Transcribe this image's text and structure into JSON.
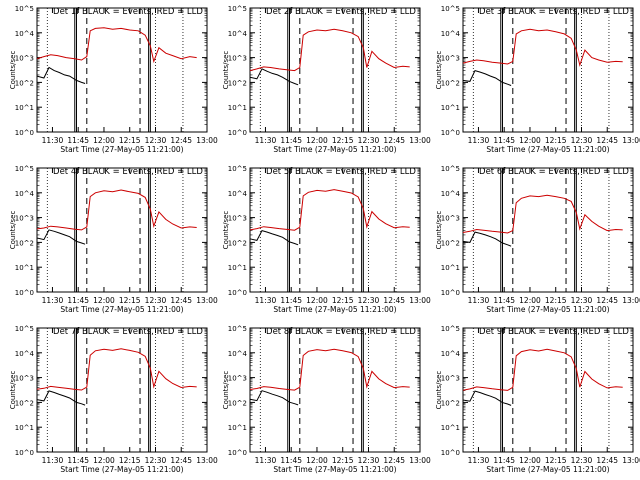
{
  "chart_data": [
    {
      "type": "line",
      "title": "Det 1f BLACK = Events, RED = LLD",
      "xlabel": "Start Time (27-May-05 11:21:00)",
      "ylabel": "Counts/sec",
      "xticks": [
        "11:30",
        "11:45",
        "12:00",
        "12:15",
        "12:30",
        "12:45",
        "13:00"
      ],
      "yticks": [
        "10^0",
        "10^1",
        "10^2",
        "10^3",
        "10^4",
        "10^5"
      ],
      "ylim": [
        1,
        100000
      ],
      "yscale": "log",
      "xlim": [
        "11:21",
        "13:00"
      ],
      "series": [
        {
          "color": "#000000",
          "x": [
            "11:21",
            "11:25",
            "11:28",
            "11:31",
            "11:34",
            "11:37",
            "11:40",
            "11:44",
            "11:47",
            "11:49"
          ],
          "values": [
            180,
            150,
            400,
            300,
            250,
            200,
            180,
            120,
            100,
            90
          ]
        },
        {
          "color": "#cc0000",
          "x": [
            "11:21",
            "11:25",
            "11:29",
            "11:33",
            "11:38",
            "11:43",
            "11:47",
            "11:50",
            "11:52",
            "11:55",
            "12:00",
            "12:05",
            "12:10",
            "12:15",
            "12:20",
            "12:24",
            "12:27",
            "12:29",
            "12:32",
            "12:36",
            "12:40",
            "12:45",
            "12:50",
            "12:54"
          ],
          "values": [
            900,
            1100,
            1300,
            1200,
            1000,
            900,
            800,
            1100,
            12000,
            15000,
            16000,
            14000,
            15000,
            13000,
            12000,
            8000,
            3000,
            700,
            2500,
            1500,
            1200,
            900,
            1100,
            1000
          ]
        }
      ]
    },
    {
      "type": "line",
      "title": "Det 2f BLACK = Events, RED = LLD",
      "xlabel": "Start Time (27-May-05 11:21:00)",
      "ylabel": "Counts/sec",
      "xticks": [
        "11:30",
        "11:45",
        "12:00",
        "12:15",
        "12:30",
        "12:45",
        "13:00"
      ],
      "yticks": [
        "10^0",
        "10^1",
        "10^2",
        "10^3",
        "10^4",
        "10^5"
      ],
      "ylim": [
        1,
        100000
      ],
      "yscale": "log",
      "xlim": [
        "11:21",
        "13:00"
      ],
      "series": [
        {
          "color": "#000000",
          "x": [
            "11:21",
            "11:25",
            "11:28",
            "11:31",
            "11:34",
            "11:37",
            "11:40",
            "11:44",
            "11:47",
            "11:49"
          ],
          "values": [
            160,
            140,
            350,
            280,
            230,
            200,
            160,
            110,
            90,
            80
          ]
        },
        {
          "color": "#cc0000",
          "x": [
            "11:21",
            "11:25",
            "11:29",
            "11:33",
            "11:38",
            "11:43",
            "11:47",
            "11:50",
            "11:52",
            "11:55",
            "12:00",
            "12:05",
            "12:10",
            "12:15",
            "12:20",
            "12:24",
            "12:27",
            "12:29",
            "12:32",
            "12:36",
            "12:40",
            "12:45",
            "12:50",
            "12:54"
          ],
          "values": [
            300,
            350,
            420,
            400,
            350,
            320,
            300,
            400,
            8000,
            11000,
            13000,
            12000,
            14000,
            12000,
            10000,
            7000,
            2500,
            400,
            1800,
            900,
            600,
            400,
            450,
            420
          ]
        }
      ]
    },
    {
      "type": "line",
      "title": "Det 3f BLACK = Events, RED = LLD",
      "xlabel": "Start Time (27-May-05 11:21:00)",
      "ylabel": "Counts/sec",
      "xticks": [
        "11:30",
        "11:45",
        "12:00",
        "12:15",
        "12:30",
        "12:45",
        "13:00"
      ],
      "yticks": [
        "10^0",
        "10^1",
        "10^2",
        "10^3",
        "10^4",
        "10^5"
      ],
      "ylim": [
        1,
        100000
      ],
      "yscale": "log",
      "xlim": [
        "11:21",
        "13:00"
      ],
      "series": [
        {
          "color": "#000000",
          "x": [
            "11:21",
            "11:25",
            "11:28",
            "11:31",
            "11:34",
            "11:37",
            "11:40",
            "11:44",
            "11:47",
            "11:49"
          ],
          "values": [
            120,
            110,
            300,
            260,
            220,
            180,
            150,
            100,
            85,
            75
          ]
        },
        {
          "color": "#cc0000",
          "x": [
            "11:21",
            "11:25",
            "11:29",
            "11:33",
            "11:38",
            "11:43",
            "11:47",
            "11:50",
            "11:52",
            "11:55",
            "12:00",
            "12:05",
            "12:10",
            "12:15",
            "12:20",
            "12:24",
            "12:27",
            "12:29",
            "12:32",
            "12:36",
            "12:40",
            "12:45",
            "12:50",
            "12:54"
          ],
          "values": [
            600,
            700,
            800,
            750,
            650,
            600,
            550,
            700,
            9000,
            12000,
            14000,
            12000,
            13000,
            11000,
            9000,
            6000,
            2000,
            500,
            2000,
            1000,
            800,
            650,
            700,
            680
          ]
        }
      ]
    },
    {
      "type": "line",
      "title": "Det 4f BLACK = Events, RED = LLD",
      "xlabel": "Start Time (27-May-05 11:21:00)",
      "ylabel": "Counts/sec",
      "xticks": [
        "11:30",
        "11:45",
        "12:00",
        "12:15",
        "12:30",
        "12:45",
        "13:00"
      ],
      "yticks": [
        "10^0",
        "10^1",
        "10^2",
        "10^3",
        "10^4",
        "10^5"
      ],
      "ylim": [
        1,
        100000
      ],
      "yscale": "log",
      "xlim": [
        "11:21",
        "13:00"
      ],
      "series": [
        {
          "color": "#000000",
          "x": [
            "11:21",
            "11:25",
            "11:28",
            "11:31",
            "11:34",
            "11:37",
            "11:40",
            "11:44",
            "11:47",
            "11:49"
          ],
          "values": [
            150,
            130,
            320,
            280,
            240,
            200,
            170,
            110,
            95,
            85
          ]
        },
        {
          "color": "#cc0000",
          "x": [
            "11:21",
            "11:25",
            "11:29",
            "11:33",
            "11:38",
            "11:43",
            "11:47",
            "11:50",
            "11:52",
            "11:55",
            "12:00",
            "12:05",
            "12:10",
            "12:15",
            "12:20",
            "12:24",
            "12:27",
            "12:29",
            "12:32",
            "12:36",
            "12:40",
            "12:45",
            "12:50",
            "12:54"
          ],
          "values": [
            350,
            380,
            450,
            420,
            380,
            340,
            320,
            420,
            7000,
            10000,
            12000,
            11000,
            13000,
            11000,
            9500,
            6500,
            2200,
            450,
            1700,
            850,
            550,
            380,
            420,
            400
          ]
        }
      ]
    },
    {
      "type": "line",
      "title": "Det 5f BLACK = Events, RED = LLD",
      "xlabel": "Start Time (27-May-05 11:21:00)",
      "ylabel": "Counts/sec",
      "xticks": [
        "11:30",
        "11:45",
        "12:00",
        "12:15",
        "12:30",
        "12:45",
        "13:00"
      ],
      "yticks": [
        "10^0",
        "10^1",
        "10^2",
        "10^3",
        "10^4",
        "10^5"
      ],
      "ylim": [
        1,
        100000
      ],
      "yscale": "log",
      "xlim": [
        "11:21",
        "13:00"
      ],
      "series": [
        {
          "color": "#000000",
          "x": [
            "11:21",
            "11:25",
            "11:28",
            "11:31",
            "11:34",
            "11:37",
            "11:40",
            "11:44",
            "11:47",
            "11:49"
          ],
          "values": [
            140,
            120,
            300,
            260,
            220,
            190,
            160,
            105,
            90,
            80
          ]
        },
        {
          "color": "#cc0000",
          "x": [
            "11:21",
            "11:25",
            "11:29",
            "11:33",
            "11:38",
            "11:43",
            "11:47",
            "11:50",
            "11:52",
            "11:55",
            "12:00",
            "12:05",
            "12:10",
            "12:15",
            "12:20",
            "12:24",
            "12:27",
            "12:29",
            "12:32",
            "12:36",
            "12:40",
            "12:45",
            "12:50",
            "12:54"
          ],
          "values": [
            320,
            360,
            430,
            400,
            360,
            330,
            310,
            410,
            7500,
            10500,
            12500,
            11500,
            13500,
            11500,
            9800,
            6800,
            2300,
            420,
            1750,
            880,
            570,
            390,
            430,
            410
          ]
        }
      ]
    },
    {
      "type": "line",
      "title": "Det 6f BLACK = Events, RED = LLD",
      "xlabel": "Start Time (27-May-05 11:21:00)",
      "ylabel": "Counts/sec",
      "xticks": [
        "11:30",
        "11:45",
        "12:00",
        "12:15",
        "12:30",
        "12:45",
        "13:00"
      ],
      "yticks": [
        "10^0",
        "10^1",
        "10^2",
        "10^3",
        "10^4",
        "10^5"
      ],
      "ylim": [
        1,
        100000
      ],
      "yscale": "log",
      "xlim": [
        "11:21",
        "13:00"
      ],
      "series": [
        {
          "color": "#000000",
          "x": [
            "11:21",
            "11:25",
            "11:28",
            "11:31",
            "11:34",
            "11:37",
            "11:40",
            "11:44",
            "11:47",
            "11:49"
          ],
          "values": [
            110,
            100,
            260,
            230,
            200,
            170,
            140,
            95,
            80,
            70
          ]
        },
        {
          "color": "#cc0000",
          "x": [
            "11:21",
            "11:25",
            "11:29",
            "11:33",
            "11:38",
            "11:43",
            "11:47",
            "11:50",
            "11:52",
            "11:55",
            "12:00",
            "12:05",
            "12:10",
            "12:15",
            "12:20",
            "12:24",
            "12:27",
            "12:29",
            "12:32",
            "12:36",
            "12:40",
            "12:45",
            "12:50",
            "12:54"
          ],
          "values": [
            250,
            280,
            330,
            310,
            280,
            260,
            240,
            300,
            4000,
            6000,
            7500,
            7000,
            8000,
            7000,
            6000,
            4500,
            1600,
            350,
            1300,
            700,
            450,
            300,
            330,
            320
          ]
        }
      ]
    },
    {
      "type": "line",
      "title": "Det 7f BLACK = Events, RED = LLD",
      "xlabel": "Start Time (27-May-05 11:21:00)",
      "ylabel": "Counts/sec",
      "xticks": [
        "11:30",
        "11:45",
        "12:00",
        "12:15",
        "12:30",
        "12:45",
        "13:00"
      ],
      "yticks": [
        "10^0",
        "10^1",
        "10^2",
        "10^3",
        "10^4",
        "10^5"
      ],
      "ylim": [
        1,
        100000
      ],
      "yscale": "log",
      "xlim": [
        "11:21",
        "13:00"
      ],
      "series": [
        {
          "color": "#000000",
          "x": [
            "11:21",
            "11:25",
            "11:28",
            "11:31",
            "11:34",
            "11:37",
            "11:40",
            "11:44",
            "11:47",
            "11:49"
          ],
          "values": [
            130,
            115,
            290,
            250,
            210,
            180,
            150,
            100,
            88,
            78
          ]
        },
        {
          "color": "#cc0000",
          "x": [
            "11:21",
            "11:25",
            "11:29",
            "11:33",
            "11:38",
            "11:43",
            "11:47",
            "11:50",
            "11:52",
            "11:55",
            "12:00",
            "12:05",
            "12:10",
            "12:15",
            "12:20",
            "12:24",
            "12:27",
            "12:29",
            "12:32",
            "12:36",
            "12:40",
            "12:45",
            "12:50",
            "12:54"
          ],
          "values": [
            340,
            370,
            440,
            410,
            370,
            335,
            315,
            415,
            8000,
            12000,
            14000,
            12500,
            14500,
            12500,
            10500,
            7200,
            2400,
            430,
            1800,
            900,
            580,
            400,
            440,
            420
          ]
        }
      ]
    },
    {
      "type": "line",
      "title": "Det 8f BLACK = Events, RED = LLD",
      "xlabel": "Start Time (27-May-05 11:21:00)",
      "ylabel": "Counts/sec",
      "xticks": [
        "11:30",
        "11:45",
        "12:00",
        "12:15",
        "12:30",
        "12:45",
        "13:00"
      ],
      "yticks": [
        "10^0",
        "10^1",
        "10^2",
        "10^3",
        "10^4",
        "10^5"
      ],
      "ylim": [
        1,
        100000
      ],
      "yscale": "log",
      "xlim": [
        "11:21",
        "13:00"
      ],
      "series": [
        {
          "color": "#000000",
          "x": [
            "11:21",
            "11:25",
            "11:28",
            "11:31",
            "11:34",
            "11:37",
            "11:40",
            "11:44",
            "11:47",
            "11:49"
          ],
          "values": [
            135,
            118,
            295,
            255,
            215,
            185,
            155,
            102,
            89,
            79
          ]
        },
        {
          "color": "#cc0000",
          "x": [
            "11:21",
            "11:25",
            "11:29",
            "11:33",
            "11:38",
            "11:43",
            "11:47",
            "11:50",
            "11:52",
            "11:55",
            "12:00",
            "12:05",
            "12:10",
            "12:15",
            "12:20",
            "12:24",
            "12:27",
            "12:29",
            "12:32",
            "12:36",
            "12:40",
            "12:45",
            "12:50",
            "12:54"
          ],
          "values": [
            330,
            365,
            435,
            405,
            365,
            332,
            312,
            412,
            7800,
            11500,
            13500,
            12000,
            14000,
            12000,
            10200,
            7000,
            2350,
            425,
            1780,
            890,
            575,
            395,
            435,
            415
          ]
        }
      ]
    },
    {
      "type": "line",
      "title": "Det 9f BLACK = Events, RED = LLD",
      "xlabel": "Start Time (27-May-05 11:21:00)",
      "ylabel": "Counts/sec",
      "xticks": [
        "11:30",
        "11:45",
        "12:00",
        "12:15",
        "12:30",
        "12:45",
        "13:00"
      ],
      "yticks": [
        "10^0",
        "10^1",
        "10^2",
        "10^3",
        "10^4",
        "10^5"
      ],
      "ylim": [
        1,
        100000
      ],
      "yscale": "log",
      "xlim": [
        "11:21",
        "13:00"
      ],
      "series": [
        {
          "color": "#000000",
          "x": [
            "11:21",
            "11:25",
            "11:28",
            "11:31",
            "11:34",
            "11:37",
            "11:40",
            "11:44",
            "11:47",
            "11:49"
          ],
          "values": [
            125,
            112,
            285,
            248,
            208,
            178,
            148,
            98,
            86,
            76
          ]
        },
        {
          "color": "#cc0000",
          "x": [
            "11:21",
            "11:25",
            "11:29",
            "11:33",
            "11:38",
            "11:43",
            "11:47",
            "11:50",
            "11:52",
            "11:55",
            "12:00",
            "12:05",
            "12:10",
            "12:15",
            "12:20",
            "12:24",
            "12:27",
            "12:29",
            "12:32",
            "12:36",
            "12:40",
            "12:45",
            "12:50",
            "12:54"
          ],
          "values": [
            310,
            350,
            420,
            395,
            355,
            325,
            305,
            405,
            7600,
            11200,
            13200,
            11800,
            13800,
            11800,
            10000,
            6900,
            2300,
            415,
            1760,
            880,
            565,
            385,
            425,
            405
          ]
        }
      ]
    }
  ]
}
